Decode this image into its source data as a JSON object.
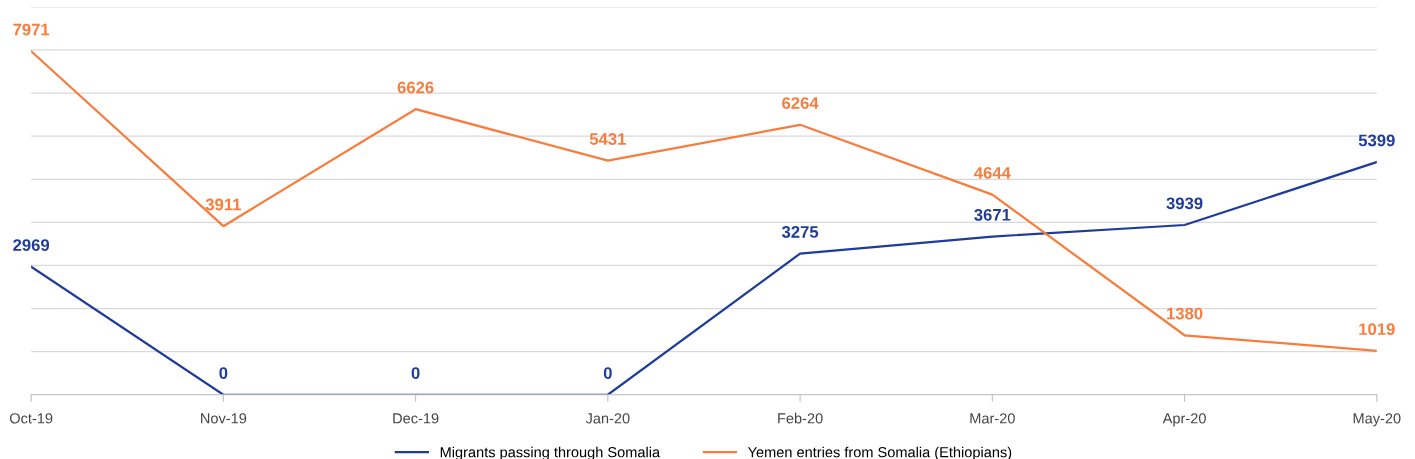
{
  "chart_data": {
    "type": "line",
    "categories": [
      "Oct-19",
      "Nov-19",
      "Dec-19",
      "Jan-20",
      "Feb-20",
      "Mar-20",
      "Apr-20",
      "May-20"
    ],
    "series": [
      {
        "name": "Migrants passing through Somalia",
        "color": "#1f3c99",
        "values": [
          2969,
          0,
          0,
          0,
          3275,
          3671,
          3939,
          5399
        ]
      },
      {
        "name": "Yemen entries from Somalia (Ethiopians)",
        "color": "#f97c3c",
        "values": [
          7971,
          3911,
          6626,
          5431,
          6264,
          4644,
          1380,
          1019
        ]
      }
    ],
    "ylim": [
      0,
      9000
    ],
    "yticks": [
      {
        "value": 0,
        "label": null
      },
      {
        "value": 1000,
        "label": null
      },
      {
        "value": 2000,
        "label": null
      },
      {
        "value": 3000,
        "label": null
      },
      {
        "value": 4000,
        "label": null
      },
      {
        "value": 5000,
        "label": null
      },
      {
        "value": 6000,
        "label": null
      },
      {
        "value": 7000,
        "label": null
      },
      {
        "value": 8000,
        "label": null
      },
      {
        "value": 9000,
        "label": null
      }
    ],
    "tick_labels": "x",
    "grid": "y",
    "legend": "bottom",
    "data_labels": true,
    "marker": "none",
    "line_style": "solid"
  }
}
